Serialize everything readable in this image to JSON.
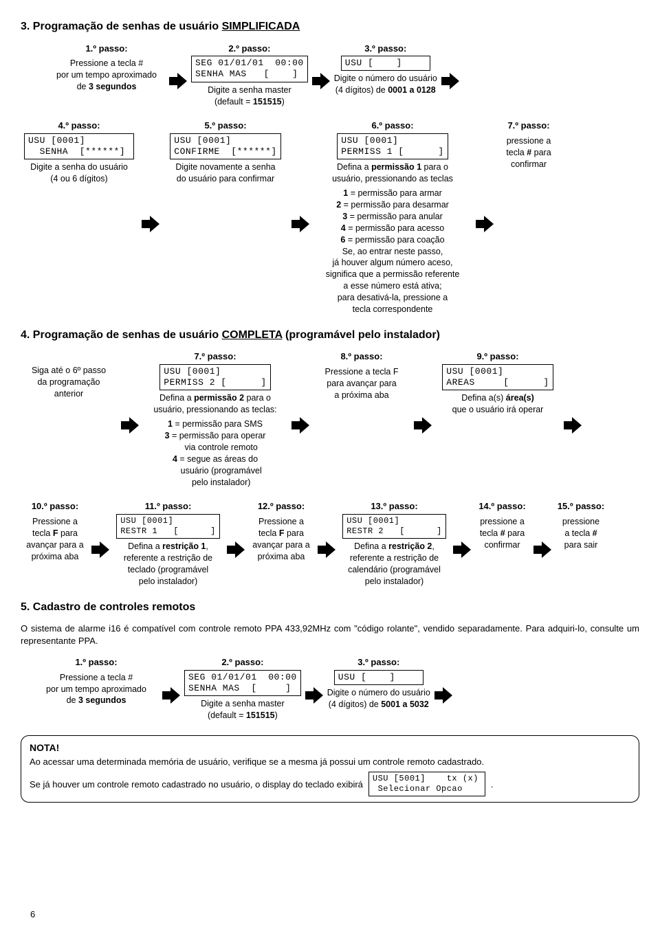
{
  "colors": {
    "fg": "#000000",
    "bg": "#ffffff",
    "border": "#000000"
  },
  "arrow": {
    "fill": "#000000",
    "width": 26,
    "height": 24
  },
  "pageNumber": "6",
  "section3": {
    "title_prefix": "3. Programação de senhas de usuário ",
    "title_underline": "SIMPLIFICADA",
    "row1": {
      "p1": {
        "label": "1.º passo:",
        "caption_html": "Pressione a tecla #<br>por um tempo aproximado<br>de <b>3 segundos</b>"
      },
      "p2": {
        "label": "2.º passo:",
        "lcd": "SEG 01/01/01  00:00\nSENHA MAS   [    ]",
        "caption_html": "Digite a senha master<br>(default = <b>151515</b>)"
      },
      "p3": {
        "label": "3.º passo:",
        "lcd": "USU [    ]",
        "caption_html": "Digite o número do usuário<br>(4 dígitos) de <b>0001 a 0128</b>"
      }
    },
    "row2": {
      "p4": {
        "label": "4.º passo:",
        "lcd": "USU [0001]\n  SENHA  [******]",
        "caption_html": "Digite a senha do usuário<br>(4 ou 6 dígitos)"
      },
      "p5": {
        "label": "5.º passo:",
        "lcd": "USU [0001]\nCONFIRME  [******]",
        "caption_html": "Digite novamente a senha<br>do usuário para confirmar"
      },
      "p6": {
        "label": "6.º passo:",
        "lcd": "USU [0001]\nPERMISS 1 [      ]",
        "caption_html": "Defina a <b>permissão 1</b> para o<br>usuário, pressionando as teclas",
        "perms_html": "<b>1</b> = permissão para armar<br><b>2</b> = permissão para desarmar<br><b>3</b> = permissão para anular<br><b>4</b> = permissão para acesso<br><b>6</b> = permissão para coação<br>Se, ao entrar neste passo,<br>já houver algum número aceso,<br>significa que a permissão referente<br>a esse número está ativa;<br>para desativá-la, pressione a<br>tecla correspondente"
      },
      "p7": {
        "label": "7.º passo:",
        "caption_html": "pressione a<br>tecla <b>#</b> para<br>confirmar"
      }
    }
  },
  "section4": {
    "title_prefix": "4. Programação de senhas de usuário ",
    "title_underline": "COMPLETA",
    "title_suffix": " (programável pelo instalador)",
    "row1": {
      "intro_html": "Siga até o 6º passo<br>da programação<br>anterior",
      "p7": {
        "label": "7.º passo:",
        "lcd": "USU [0001]\nPERMISS 2 [      ]",
        "caption_html": "Defina a <b>permissão 2</b> para o<br>usuário, pressionando as teclas:",
        "perms_html": "<b>1</b> = permissão para SMS<br><b>3</b> = permissão para operar<br>&nbsp;&nbsp;&nbsp;&nbsp;&nbsp;via controle remoto<br><b>4</b> = segue as áreas do<br>&nbsp;&nbsp;&nbsp;&nbsp;&nbsp;usuário (programável<br>&nbsp;&nbsp;&nbsp;&nbsp;&nbsp;pelo instalador)"
      },
      "p8": {
        "label": "8.º passo:",
        "caption_html": "Pressione a tecla F<br>para avançar para<br>a próxima aba"
      },
      "p9": {
        "label": "9.º passo:",
        "lcd": "USU [0001]\nAREAS     [      ]",
        "caption_html": "Defina a(s) <b>área(s)</b><br>que o usuário irá operar"
      }
    },
    "row2": {
      "p10": {
        "label": "10.º passo:",
        "caption_html": "Pressione a<br>tecla <b>F</b> para<br>avançar para a<br>próxima aba"
      },
      "p11": {
        "label": "11.º passo:",
        "lcd": "USU [0001]\nRESTR 1   [      ]",
        "caption_html": "Defina a <b>restrição 1</b>,<br>referente a restrição de<br>teclado (programável<br>pelo instalador)"
      },
      "p12": {
        "label": "12.º passo:",
        "caption_html": "Pressione a<br>tecla <b>F</b> para<br>avançar para a<br>próxima aba"
      },
      "p13": {
        "label": "13.º passo:",
        "lcd": "USU [0001]\nRESTR 2   [      ]",
        "caption_html": "Defina a <b>restrição 2</b>,<br>referente a restrição de<br>calendário (programável<br>pelo instalador)"
      },
      "p14": {
        "label": "14.º passo:",
        "caption_html": "pressione a<br>tecla <b>#</b> para<br>confirmar"
      },
      "p15": {
        "label": "15.º passo:",
        "caption_html": "pressione<br>a tecla <b>#</b><br>para sair"
      }
    }
  },
  "section5": {
    "title": "5. Cadastro de controles remotos",
    "intro": "O sistema de alarme i16 é compatível com controle remoto PPA 433,92MHz com \"código rolante\", vendido separadamente. Para adquiri-lo, consulte um representante PPA.",
    "row1": {
      "p1": {
        "label": "1.º passo:",
        "caption_html": "Pressione a tecla #<br>por um tempo aproximado<br>de <b>3 segundos</b>"
      },
      "p2": {
        "label": "2.º passo:",
        "lcd": "SEG 01/01/01  00:00\nSENHA MAS  [     ]",
        "caption_html": "Digite a senha master<br>(default = <b>151515</b>)"
      },
      "p3": {
        "label": "3.º passo:",
        "lcd": "USU [    ]",
        "caption_html": "Digite o número do usuário<br>(4 dígitos) de <b>5001 a 5032</b>"
      }
    },
    "note": {
      "title": "NOTA!",
      "line1": "Ao acessar uma determinada memória de usuário, verifique se a mesma já possui um controle remoto cadastrado.",
      "line2_prefix": "Se já houver um controle remoto cadastrado no usuário, o display do teclado exibirá",
      "lcd": "USU [5001]    tx (x)\n Selecionar Opcao ",
      "line2_suffix": "."
    }
  }
}
